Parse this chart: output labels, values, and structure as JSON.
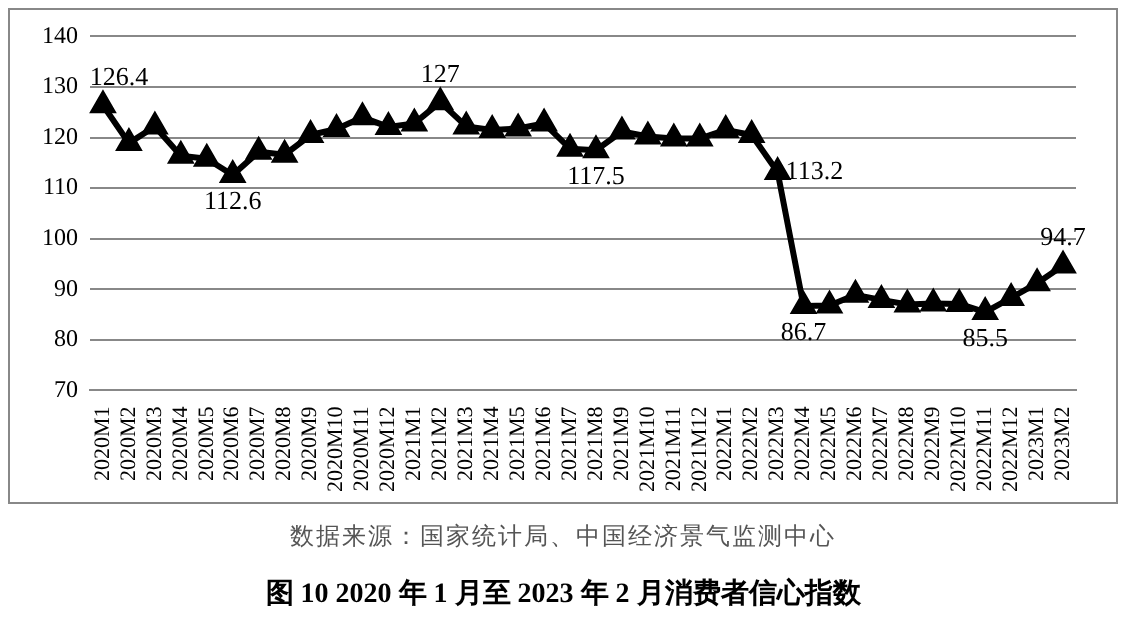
{
  "chart_data": {
    "type": "line",
    "title": "图 10   2020 年 1 月至 2023 年 2 月消费者信心指数",
    "annotations": [
      "数据来源：国家统计局、中国经济景气监测中心"
    ],
    "categories": [
      "2020M1",
      "2020M2",
      "2020M3",
      "2020M4",
      "2020M5",
      "2020M6",
      "2020M7",
      "2020M8",
      "2020M9",
      "2020M10",
      "2020M11",
      "2020M12",
      "2021M1",
      "2021M2",
      "2021M3",
      "2021M4",
      "2021M5",
      "2021M6",
      "2021M7",
      "2021M8",
      "2021M9",
      "2021M10",
      "2021M11",
      "2021M12",
      "2022M1",
      "2022M2",
      "2022M3",
      "2022M4",
      "2022M5",
      "2022M6",
      "2022M7",
      "2022M8",
      "2022M9",
      "2022M10",
      "2022M11",
      "2022M12",
      "2023M1",
      "2023M2"
    ],
    "values": [
      126.4,
      118.9,
      122.2,
      116.4,
      115.8,
      112.6,
      117.2,
      116.6,
      120.5,
      121.7,
      124.0,
      122.1,
      122.8,
      127,
      122.2,
      121.5,
      121.8,
      122.8,
      117.8,
      117.5,
      121.2,
      120.2,
      119.8,
      119.8,
      121.5,
      120.5,
      113.2,
      86.7,
      86.8,
      88.9,
      87.9,
      87.0,
      87.2,
      87.1,
      85.5,
      88.3,
      91.2,
      94.7
    ],
    "value_labels": [
      "126.4",
      null,
      null,
      null,
      null,
      "112.6",
      null,
      null,
      null,
      null,
      null,
      null,
      null,
      "127",
      null,
      null,
      null,
      null,
      null,
      "117.5",
      null,
      null,
      null,
      null,
      null,
      null,
      "113.2",
      "86.7",
      null,
      null,
      null,
      null,
      null,
      null,
      "85.5",
      null,
      null,
      "94.7"
    ],
    "color": "#000000",
    "marker": "triangle",
    "line_style": "solid",
    "ylim": [
      70,
      140
    ],
    "yticks": [
      70,
      80,
      90,
      100,
      110,
      120,
      130,
      140
    ],
    "grid": "y",
    "legend": false
  }
}
